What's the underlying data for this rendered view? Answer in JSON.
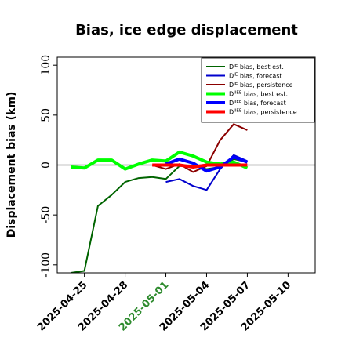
{
  "chart_data": {
    "type": "line",
    "title": "Bias, ice edge displacement",
    "xlabel": "",
    "ylabel": "Displacement bias (km)",
    "x_range": [
      "2025-04-23",
      "2025-05-12"
    ],
    "ylim": [
      -108,
      108
    ],
    "yticks": [
      100,
      50,
      0,
      -50,
      -100
    ],
    "xticks": [
      {
        "date": "2025-04-25",
        "label": "2025-04-25",
        "color": "#000000"
      },
      {
        "date": "2025-04-28",
        "label": "2025-04-28",
        "color": "#000000"
      },
      {
        "date": "2025-05-01",
        "label": "2025-05-01",
        "color": "#2e8b2e"
      },
      {
        "date": "2025-05-04",
        "label": "2025-05-04",
        "color": "#000000"
      },
      {
        "date": "2025-05-07",
        "label": "2025-05-07",
        "color": "#000000"
      },
      {
        "date": "2025-05-10",
        "label": "2025-05-10",
        "color": "#000000"
      }
    ],
    "zero_line": true,
    "grid": false,
    "legend_position": "top-right",
    "series": [
      {
        "name": "D",
        "sup": "IE",
        "suffix": " bias, best est.",
        "color": "#006400",
        "width": 2,
        "x": [
          "2025-04-24",
          "2025-04-25",
          "2025-04-26",
          "2025-04-27",
          "2025-04-28",
          "2025-04-29",
          "2025-04-30",
          "2025-05-01",
          "2025-05-02",
          "2025-05-03",
          "2025-05-04",
          "2025-05-05",
          "2025-05-06",
          "2025-05-07"
        ],
        "y": [
          -108,
          -106,
          -41,
          -30,
          -17,
          -13,
          -12,
          -14,
          -1,
          -1,
          -4,
          -2,
          6,
          3
        ]
      },
      {
        "name": "D",
        "sup": "IE",
        "suffix": " bias, forecast",
        "color": "#0000cd",
        "width": 2,
        "x": [
          "2025-05-01",
          "2025-05-02",
          "2025-05-03",
          "2025-05-04",
          "2025-05-05",
          "2025-05-06",
          "2025-05-07"
        ],
        "y": [
          -17,
          -14,
          -21,
          -25,
          -4,
          10,
          4
        ]
      },
      {
        "name": "D",
        "sup": "IE",
        "suffix": " bias, persistence",
        "color": "#8b0000",
        "width": 2,
        "x": [
          "2025-04-30",
          "2025-05-01",
          "2025-05-02",
          "2025-05-03",
          "2025-05-04",
          "2025-05-05",
          "2025-05-06",
          "2025-05-07"
        ],
        "y": [
          0,
          -4,
          1,
          -7,
          -1,
          25,
          41,
          35
        ]
      },
      {
        "name": "D",
        "sup": "IIEE",
        "suffix": " bias, best est.",
        "color": "#00ff00",
        "width": 4,
        "x": [
          "2025-04-24",
          "2025-04-25",
          "2025-04-26",
          "2025-04-27",
          "2025-04-28",
          "2025-04-29",
          "2025-04-30",
          "2025-05-01",
          "2025-05-02",
          "2025-05-03",
          "2025-05-04",
          "2025-05-05",
          "2025-05-06",
          "2025-05-07"
        ],
        "y": [
          -2,
          -3,
          5,
          5,
          -4,
          1,
          5,
          4,
          13,
          9,
          3,
          1,
          3,
          -3
        ]
      },
      {
        "name": "D",
        "sup": "IIEE",
        "suffix": " bias, forecast",
        "color": "#0000ff",
        "width": 4,
        "x": [
          "2025-05-01",
          "2025-05-02",
          "2025-05-03",
          "2025-05-04",
          "2025-05-05",
          "2025-05-06",
          "2025-05-07"
        ],
        "y": [
          1,
          6,
          2,
          -6,
          -2,
          8,
          3
        ]
      },
      {
        "name": "D",
        "sup": "IIEE",
        "suffix": " bias, persistence",
        "color": "#ff0000",
        "width": 4,
        "x": [
          "2025-04-30",
          "2025-05-01",
          "2025-05-02",
          "2025-05-03",
          "2025-05-04",
          "2025-05-05",
          "2025-05-06",
          "2025-05-07"
        ],
        "y": [
          0,
          0,
          0,
          -2,
          0,
          0,
          0,
          0
        ]
      }
    ]
  }
}
